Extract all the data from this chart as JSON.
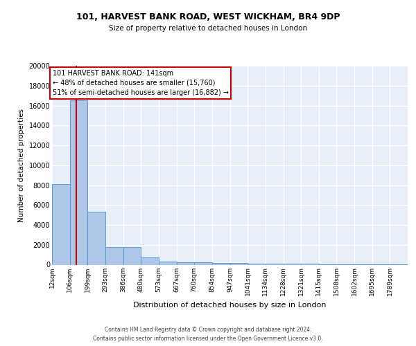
{
  "title1": "101, HARVEST BANK ROAD, WEST WICKHAM, BR4 9DP",
  "title2": "Size of property relative to detached houses in London",
  "xlabel": "Distribution of detached houses by size in London",
  "ylabel": "Number of detached properties",
  "bar_edges": [
    12,
    106,
    199,
    293,
    386,
    480,
    573,
    667,
    760,
    854,
    947,
    1041,
    1134,
    1228,
    1321,
    1415,
    1508,
    1602,
    1695,
    1789,
    1882
  ],
  "bar_heights": [
    8100,
    16500,
    5300,
    1750,
    1750,
    700,
    300,
    230,
    210,
    180,
    150,
    130,
    110,
    90,
    75,
    60,
    50,
    40,
    35,
    30
  ],
  "bar_color": "#aec6e8",
  "bar_edge_color": "#5b9bd5",
  "bg_color": "#e8eef7",
  "grid_color": "#ffffff",
  "red_line_x": 141,
  "annotation_text": "101 HARVEST BANK ROAD: 141sqm\n← 48% of detached houses are smaller (15,760)\n51% of semi-detached houses are larger (16,882) →",
  "annotation_box_color": "#ffffff",
  "annotation_border_color": "#cc0000",
  "footer1": "Contains HM Land Registry data © Crown copyright and database right 2024.",
  "footer2": "Contains public sector information licensed under the Open Government Licence v3.0.",
  "ylim": [
    0,
    20000
  ],
  "yticks": [
    0,
    2000,
    4000,
    6000,
    8000,
    10000,
    12000,
    14000,
    16000,
    18000,
    20000
  ]
}
